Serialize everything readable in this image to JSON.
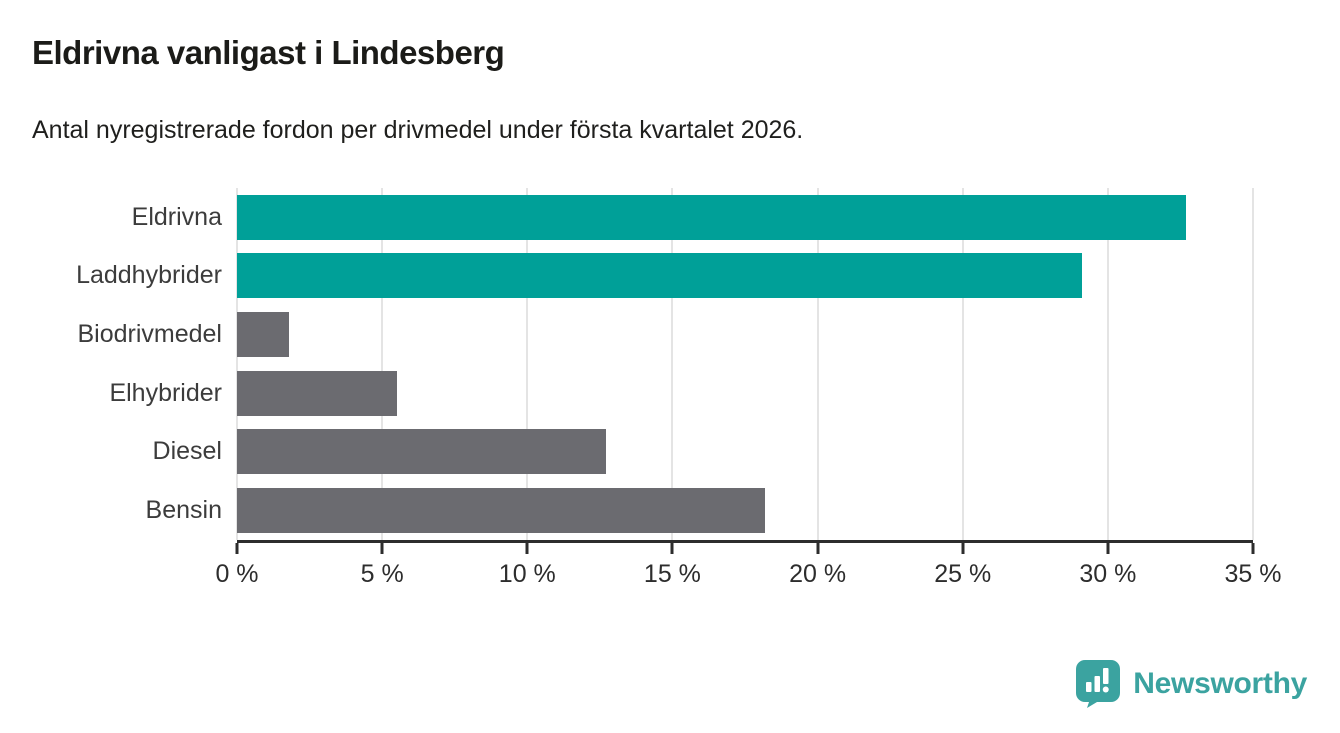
{
  "header": {
    "title": "Eldrivna vanligast i Lindesberg",
    "subtitle": "Antal nyregistrerade fordon per drivmedel under första kvartalet 2026."
  },
  "chart_data": {
    "type": "bar",
    "orientation": "horizontal",
    "title": "Eldrivna vanligast i Lindesberg",
    "subtitle": "Antal nyregistrerade fordon per drivmedel under första kvartalet 2026.",
    "categories": [
      "Eldrivna",
      "Laddhybrider",
      "Biodrivmedel",
      "Elhybrider",
      "Diesel",
      "Bensin"
    ],
    "values": [
      32.7,
      29.1,
      1.8,
      5.5,
      12.7,
      18.2
    ],
    "unit": "%",
    "xlabel": "",
    "ylabel": "",
    "xlim": [
      0,
      35
    ],
    "x_ticks": [
      0,
      5,
      10,
      15,
      20,
      25,
      30,
      35
    ],
    "x_tick_labels": [
      "0 %",
      "5 %",
      "10 %",
      "15 %",
      "20 %",
      "25 %",
      "30 %",
      "35 %"
    ],
    "bar_colors": [
      "#00A098",
      "#00A098",
      "#6B6B70",
      "#6B6B70",
      "#6B6B70",
      "#6B6B70"
    ],
    "grid": "vertical",
    "legend": "none"
  },
  "colors": {
    "accent_teal": "#00A098",
    "bar_gray": "#6B6B70",
    "gridline": "#E4E4E4",
    "axis": "#2D2D2D",
    "title_text": "#1B1B18",
    "logo_teal": "#3BA3A0"
  },
  "footer": {
    "brand": "Newsworthy"
  }
}
